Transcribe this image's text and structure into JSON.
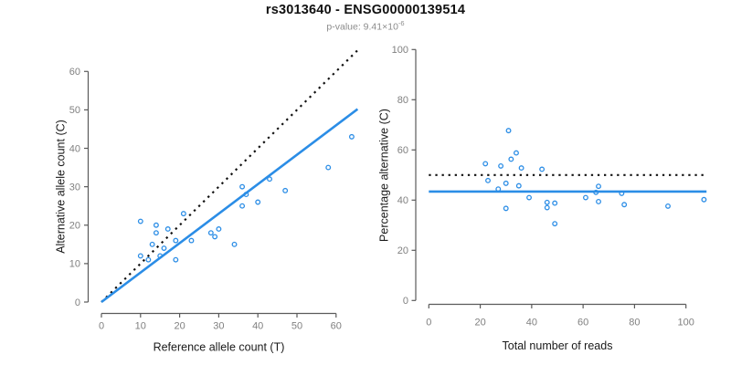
{
  "header": {
    "title": "rs3013640 - ENSG00000139514",
    "subtitle_prefix": "p-value: 9.41×10",
    "subtitle_exponent": "-6"
  },
  "colors": {
    "accent_blue": "#2b8de6",
    "dotted_black": "#111111",
    "axis_line": "#5a5a5a",
    "tick_label": "#808080",
    "axis_title": "#1a1a1a"
  },
  "chart_data": [
    {
      "type": "scatter",
      "name": "allele-counts",
      "xlabel": "Reference allele count (T)",
      "ylabel": "Alternative allele count (C)",
      "xlim": [
        0,
        66
      ],
      "ylim": [
        0,
        66
      ],
      "xticks": [
        0,
        10,
        20,
        30,
        40,
        50,
        60
      ],
      "yticks": [
        0,
        10,
        20,
        30,
        40,
        50,
        60
      ],
      "grid": false,
      "points": [
        [
          10,
          12
        ],
        [
          10,
          21
        ],
        [
          12,
          11
        ],
        [
          13,
          15
        ],
        [
          14,
          18
        ],
        [
          14,
          20
        ],
        [
          15,
          12
        ],
        [
          16,
          14
        ],
        [
          17,
          19
        ],
        [
          19,
          11
        ],
        [
          19,
          16
        ],
        [
          21,
          23
        ],
        [
          23,
          16
        ],
        [
          28,
          18
        ],
        [
          29,
          17
        ],
        [
          30,
          19
        ],
        [
          34,
          15
        ],
        [
          36,
          25
        ],
        [
          36,
          30
        ],
        [
          37,
          28
        ],
        [
          40,
          26
        ],
        [
          43,
          32
        ],
        [
          47,
          29
        ],
        [
          58,
          35
        ],
        [
          64,
          43
        ]
      ],
      "lines": [
        {
          "name": "identity",
          "style": "dotted",
          "color": "black",
          "x": [
            0,
            65.5
          ],
          "y": [
            0,
            65.5
          ]
        },
        {
          "name": "fit",
          "style": "solid",
          "color": "blue",
          "x": [
            0,
            65.5
          ],
          "y": [
            0,
            50.2
          ]
        }
      ]
    },
    {
      "type": "scatter",
      "name": "percentage-alternative",
      "xlabel": "Total number of reads",
      "ylabel": "Percentage alternative (C)",
      "xlim": [
        0,
        108
      ],
      "ylim": [
        0,
        100
      ],
      "xticks": [
        0,
        20,
        40,
        60,
        80,
        100
      ],
      "yticks": [
        0,
        20,
        40,
        60,
        80,
        100
      ],
      "grid": false,
      "points": [
        [
          22,
          54.5
        ],
        [
          23,
          47.8
        ],
        [
          27,
          44.4
        ],
        [
          28,
          53.6
        ],
        [
          30,
          36.7
        ],
        [
          30,
          46.7
        ],
        [
          31,
          67.7
        ],
        [
          32,
          56.3
        ],
        [
          34,
          58.8
        ],
        [
          35,
          45.7
        ],
        [
          36,
          52.8
        ],
        [
          39,
          41.0
        ],
        [
          44,
          52.3
        ],
        [
          46,
          37.0
        ],
        [
          46,
          39.1
        ],
        [
          49,
          30.6
        ],
        [
          49,
          38.8
        ],
        [
          61,
          41.0
        ],
        [
          65,
          43.1
        ],
        [
          66,
          39.4
        ],
        [
          66,
          45.5
        ],
        [
          75,
          42.7
        ],
        [
          76,
          38.2
        ],
        [
          93,
          37.6
        ],
        [
          107,
          40.2
        ]
      ],
      "lines": [
        {
          "name": "null-expectation",
          "style": "dotted",
          "color": "black",
          "x": [
            0,
            108
          ],
          "y": [
            50,
            50
          ]
        },
        {
          "name": "mean-percentage",
          "style": "solid",
          "color": "blue",
          "x": [
            0,
            108
          ],
          "y": [
            43.4,
            43.4
          ]
        }
      ]
    }
  ]
}
